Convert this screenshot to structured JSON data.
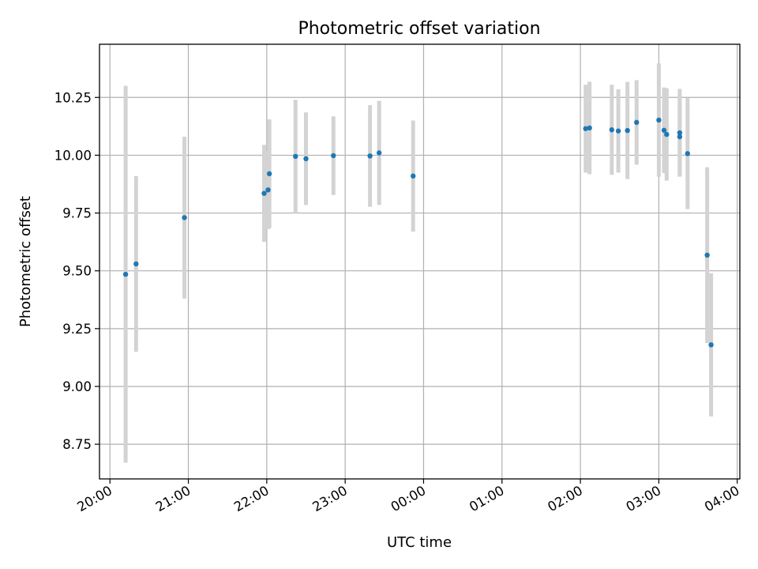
{
  "chart_data": {
    "type": "scatter",
    "title": "Photometric offset variation",
    "xlabel": "UTC time",
    "ylabel": "Photometric offset",
    "x_unit": "hours (UTC clock time)",
    "xlim": [
      "19:52",
      "04:02"
    ],
    "ylim": [
      8.6,
      10.48
    ],
    "x_ticks": [
      "20:00",
      "21:00",
      "22:00",
      "23:00",
      "00:00",
      "01:00",
      "02:00",
      "03:00",
      "04:00"
    ],
    "y_ticks": [
      "8.75",
      "9.00",
      "9.25",
      "9.50",
      "9.75",
      "10.00",
      "10.25"
    ],
    "grid": true,
    "marker_color": "#1f77b4",
    "errorbar_color": "#d3d3d3",
    "points": [
      {
        "x": "20:12",
        "y": 9.485,
        "err": 0.815
      },
      {
        "x": "20:20",
        "y": 9.53,
        "err": 0.38
      },
      {
        "x": "20:57",
        "y": 9.73,
        "err": 0.35
      },
      {
        "x": "21:58",
        "y": 9.835,
        "err": 0.21
      },
      {
        "x": "22:01",
        "y": 9.85,
        "err": 0.17
      },
      {
        "x": "22:02",
        "y": 9.92,
        "err": 0.235
      },
      {
        "x": "22:22",
        "y": 9.995,
        "err": 0.245
      },
      {
        "x": "22:30",
        "y": 9.985,
        "err": 0.2
      },
      {
        "x": "22:51",
        "y": 9.998,
        "err": 0.17
      },
      {
        "x": "23:19",
        "y": 9.997,
        "err": 0.22
      },
      {
        "x": "23:26",
        "y": 10.01,
        "err": 0.225
      },
      {
        "x": "23:52",
        "y": 9.91,
        "err": 0.24
      },
      {
        "x": "02:04",
        "y": 10.115,
        "err": 0.19
      },
      {
        "x": "02:07",
        "y": 10.118,
        "err": 0.2
      },
      {
        "x": "02:24",
        "y": 10.11,
        "err": 0.195
      },
      {
        "x": "02:29",
        "y": 10.105,
        "err": 0.18
      },
      {
        "x": "02:36",
        "y": 10.107,
        "err": 0.21
      },
      {
        "x": "02:43",
        "y": 10.142,
        "err": 0.183
      },
      {
        "x": "03:00",
        "y": 10.152,
        "err": 0.245
      },
      {
        "x": "03:04",
        "y": 10.108,
        "err": 0.185
      },
      {
        "x": "03:06",
        "y": 10.09,
        "err": 0.2
      },
      {
        "x": "03:16",
        "y": 10.097,
        "err": 0.19
      },
      {
        "x": "03:16",
        "y": 10.08,
        "err": 0.17
      },
      {
        "x": "03:22",
        "y": 10.007,
        "err": 0.24
      },
      {
        "x": "03:37",
        "y": 9.568,
        "err": 0.38
      },
      {
        "x": "03:40",
        "y": 9.18,
        "err": 0.31
      }
    ]
  }
}
